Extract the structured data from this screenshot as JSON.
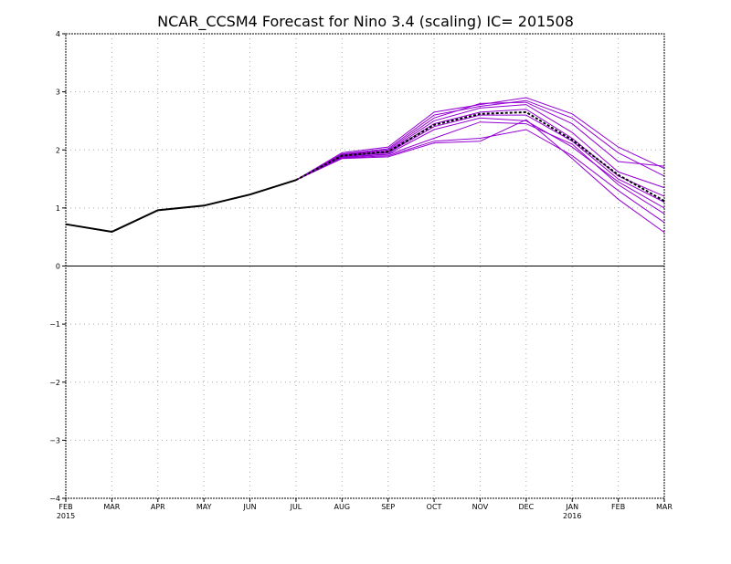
{
  "chart_data": {
    "type": "line",
    "title": "NCAR_CCSM4 Forecast for Nino 3.4 (scaling)  IC= 201508",
    "x_categories": [
      "FEB",
      "MAR",
      "APR",
      "MAY",
      "JUN",
      "JUL",
      "AUG",
      "SEP",
      "OCT",
      "NOV",
      "DEC",
      "JAN",
      "FEB",
      "MAR"
    ],
    "x_year_labels": [
      {
        "index": 0,
        "text": "2015"
      },
      {
        "index": 11,
        "text": "2016"
      }
    ],
    "ylim": [
      -4,
      4
    ],
    "yticks": [
      -4,
      -3,
      -2,
      -1,
      0,
      1,
      2,
      3,
      4
    ],
    "grid": true,
    "zero_line": true,
    "colors": {
      "observed": "#000000",
      "members": "#9400d3",
      "mean": "#000000",
      "grid": "#aaaaaa",
      "frame": "#000000"
    },
    "observed": {
      "x": [
        0,
        1,
        2,
        3,
        4,
        5
      ],
      "values": [
        0.72,
        0.59,
        0.96,
        1.04,
        1.23,
        1.48
      ]
    },
    "ensemble_mean": {
      "x": [
        5,
        6,
        7,
        8,
        9,
        10,
        11,
        12,
        13
      ],
      "values": [
        1.48,
        1.9,
        1.97,
        2.43,
        2.62,
        2.65,
        2.17,
        1.57,
        1.12
      ]
    },
    "members": [
      {
        "x": [
          5,
          6,
          7,
          8,
          9,
          10,
          11,
          12,
          13
        ],
        "values": [
          1.48,
          1.95,
          2.05,
          2.65,
          2.78,
          2.9,
          2.62,
          2.05,
          1.68
        ]
      },
      {
        "x": [
          5,
          6,
          7,
          8,
          9,
          10,
          11,
          12,
          13
        ],
        "values": [
          1.48,
          1.92,
          2.0,
          2.55,
          2.8,
          2.82,
          2.45,
          1.8,
          1.72
        ]
      },
      {
        "x": [
          5,
          6,
          7,
          8,
          9,
          10,
          11,
          12,
          13
        ],
        "values": [
          1.48,
          1.91,
          1.98,
          2.5,
          2.72,
          2.78,
          2.3,
          1.62,
          1.35
        ]
      },
      {
        "x": [
          5,
          6,
          7,
          8,
          9,
          10,
          11,
          12,
          13
        ],
        "values": [
          1.48,
          1.9,
          1.96,
          2.45,
          2.65,
          2.7,
          2.2,
          1.55,
          1.2
        ]
      },
      {
        "x": [
          5,
          6,
          7,
          8,
          9,
          10,
          11,
          12,
          13
        ],
        "values": [
          1.48,
          1.89,
          1.95,
          2.4,
          2.6,
          2.6,
          2.15,
          1.5,
          1.1
        ]
      },
      {
        "x": [
          5,
          6,
          7,
          8,
          9,
          10,
          11,
          12,
          13
        ],
        "values": [
          1.48,
          1.88,
          1.93,
          2.35,
          2.55,
          2.5,
          2.05,
          1.45,
          1.0
        ]
      },
      {
        "x": [
          5,
          6,
          7,
          8,
          9,
          10,
          11,
          12,
          13
        ],
        "values": [
          1.48,
          1.87,
          1.92,
          2.2,
          2.48,
          2.45,
          2.1,
          1.4,
          0.9
        ]
      },
      {
        "x": [
          5,
          6,
          7,
          8,
          9,
          10,
          11,
          12,
          13
        ],
        "values": [
          1.48,
          1.86,
          1.9,
          2.15,
          2.2,
          2.35,
          1.9,
          1.3,
          0.75
        ]
      },
      {
        "x": [
          5,
          6,
          7,
          8,
          9,
          10,
          11,
          12,
          13
        ],
        "values": [
          1.48,
          1.85,
          1.88,
          2.12,
          2.15,
          2.52,
          1.85,
          1.15,
          0.58
        ]
      },
      {
        "x": [
          5,
          6,
          7,
          8,
          9,
          10,
          11,
          12,
          13
        ],
        "values": [
          1.48,
          1.93,
          2.02,
          2.6,
          2.75,
          2.85,
          2.55,
          1.95,
          1.55
        ]
      }
    ]
  }
}
